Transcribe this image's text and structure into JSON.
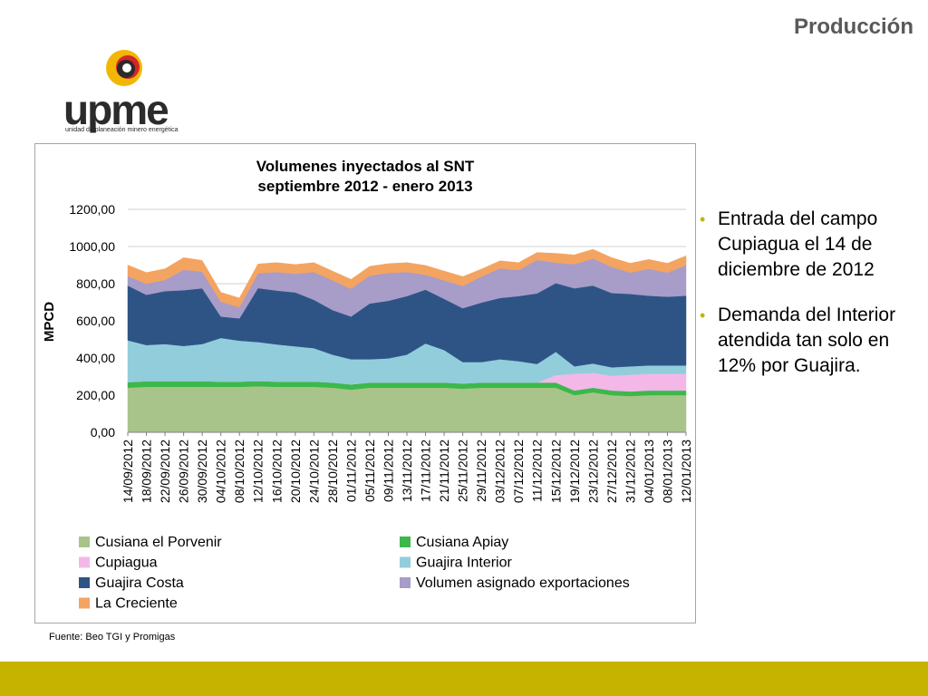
{
  "slide": {
    "title": "Producción",
    "source": "Fuente: Beo TGI y Promigas"
  },
  "logo": {
    "word": "upme",
    "subtitle": "unidad de planeación minero energética",
    "icon": "upme-logo-mark"
  },
  "bullets": [
    "Entrada del campo Cupiagua el 14 de diciembre de 2012",
    "Demanda del Interior atendida tan solo en 12% por Guajira."
  ],
  "colors": {
    "accent": "#c5b300",
    "title": "#595959"
  },
  "chart_data": {
    "type": "area",
    "stacked": true,
    "title": "Volumenes inyectados al SNT",
    "subtitle": "septiembre 2012 - enero 2013",
    "ylabel": "MPCD",
    "xlabel": "",
    "ylim": [
      0,
      1200
    ],
    "yticks": [
      "0,00",
      "200,00",
      "400,00",
      "600,00",
      "800,00",
      "1000,00",
      "1200,00"
    ],
    "grid": true,
    "legend_position": "bottom",
    "x": [
      "14/09/2012",
      "18/09/2012",
      "22/09/2012",
      "26/09/2012",
      "30/09/2012",
      "04/10/2012",
      "08/10/2012",
      "12/10/2012",
      "16/10/2012",
      "20/10/2012",
      "24/10/2012",
      "28/10/2012",
      "01/11/2012",
      "05/11/2012",
      "09/11/2012",
      "13/11/2012",
      "17/11/2012",
      "21/11/2012",
      "25/11/2012",
      "29/11/2012",
      "03/12/2012",
      "07/12/2012",
      "11/12/2012",
      "15/12/2012",
      "19/12/2012",
      "23/12/2012",
      "27/12/2012",
      "31/12/2012",
      "04/01/2013",
      "08/01/2013",
      "12/01/2013"
    ],
    "series": [
      {
        "name": "Cusiana el Porvenir",
        "color": "#a9c48a",
        "values": [
          240,
          245,
          245,
          245,
          245,
          245,
          245,
          248,
          245,
          245,
          245,
          240,
          230,
          240,
          240,
          240,
          240,
          240,
          235,
          240,
          240,
          240,
          240,
          240,
          200,
          215,
          200,
          195,
          200,
          200,
          200
        ]
      },
      {
        "name": "Cusiana Apiay",
        "color": "#3cb84a",
        "values": [
          30,
          30,
          30,
          30,
          30,
          28,
          28,
          28,
          28,
          28,
          28,
          28,
          28,
          28,
          28,
          28,
          28,
          28,
          28,
          28,
          28,
          28,
          28,
          28,
          25,
          25,
          25,
          25,
          25,
          25,
          25
        ]
      },
      {
        "name": "Cupiagua",
        "color": "#f3b8e8",
        "values": [
          0,
          0,
          0,
          0,
          0,
          0,
          0,
          0,
          0,
          0,
          0,
          0,
          0,
          0,
          0,
          0,
          0,
          0,
          0,
          0,
          0,
          0,
          0,
          40,
          90,
          80,
          80,
          90,
          90,
          90,
          90
        ]
      },
      {
        "name": "Guajira Interior",
        "color": "#92cddc",
        "values": [
          225,
          195,
          200,
          190,
          200,
          235,
          220,
          210,
          200,
          190,
          180,
          150,
          135,
          125,
          130,
          150,
          210,
          175,
          115,
          110,
          125,
          115,
          100,
          125,
          40,
          50,
          45,
          45,
          45,
          45,
          45
        ]
      },
      {
        "name": "Guajira Costa",
        "color": "#2e5486",
        "values": [
          295,
          270,
          285,
          300,
          300,
          115,
          120,
          290,
          290,
          290,
          260,
          240,
          230,
          300,
          310,
          315,
          290,
          275,
          290,
          320,
          330,
          350,
          380,
          370,
          420,
          420,
          400,
          390,
          375,
          370,
          375
        ]
      },
      {
        "name": "Volumen asignado exportaciones",
        "color": "#a89cc8",
        "values": [
          50,
          60,
          60,
          110,
          90,
          80,
          60,
          80,
          100,
          100,
          150,
          160,
          150,
          150,
          150,
          130,
          80,
          100,
          120,
          140,
          160,
          140,
          180,
          110,
          130,
          145,
          140,
          115,
          145,
          130,
          165
        ]
      },
      {
        "name": "La Creciente",
        "color": "#f4a461",
        "values": [
          60,
          60,
          60,
          65,
          60,
          50,
          50,
          50,
          50,
          50,
          50,
          50,
          50,
          50,
          50,
          50,
          50,
          50,
          50,
          40,
          40,
          40,
          40,
          50,
          50,
          50,
          50,
          50,
          50,
          50,
          50
        ]
      }
    ]
  }
}
